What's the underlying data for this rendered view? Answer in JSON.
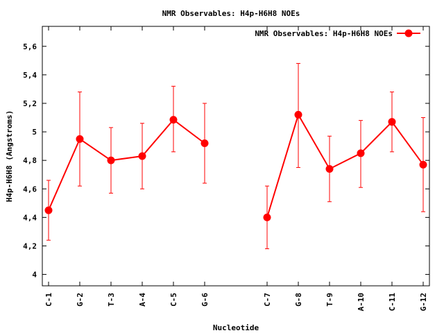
{
  "chart_data": {
    "type": "line",
    "title": "NMR Observables: H4p-H6H8 NOEs",
    "xlabel": "Nucleotide",
    "ylabel": "H4p-H6H8 (Angstroms)",
    "ylim": [
      3.92,
      5.74
    ],
    "xlim": [
      0.8,
      13.2
    ],
    "yticks": [
      4,
      4.2,
      4.4,
      4.6,
      4.8,
      5,
      5.2,
      5.4,
      5.6
    ],
    "ytick_labels": [
      "4",
      "4,2",
      "4,4",
      "4,6",
      "4,8",
      "5",
      "5,2",
      "5,4",
      "5,6"
    ],
    "grid": false,
    "legend": {
      "position": "top-right",
      "label": "NMR Observables: H4p-H6H8 NOEs"
    },
    "color": "#ff0000",
    "series": [
      {
        "name": "NMR Observables: H4p-H6H8 NOEs",
        "segments": [
          {
            "categories": [
              "C-1",
              "G-2",
              "T-3",
              "A-4",
              "C-5",
              "G-6"
            ],
            "x": [
              1,
              2,
              3,
              4,
              5,
              6
            ],
            "values": [
              4.45,
              4.95,
              4.8,
              4.83,
              5.085,
              4.92
            ],
            "err_low": [
              4.24,
              4.62,
              4.57,
              4.6,
              4.86,
              4.64
            ],
            "err_high": [
              4.66,
              5.28,
              5.03,
              5.06,
              5.32,
              5.2
            ]
          },
          {
            "categories": [
              "C-7",
              "G-8",
              "T-9",
              "A-10",
              "C-11",
              "G-12"
            ],
            "x": [
              8,
              9,
              10,
              11,
              12,
              13
            ],
            "values": [
              4.4,
              5.12,
              4.74,
              4.85,
              5.07,
              4.77
            ],
            "err_low": [
              4.18,
              4.75,
              4.51,
              4.61,
              4.86,
              4.44
            ],
            "err_high": [
              4.62,
              5.48,
              4.97,
              5.08,
              5.28,
              5.1
            ]
          }
        ]
      }
    ]
  }
}
